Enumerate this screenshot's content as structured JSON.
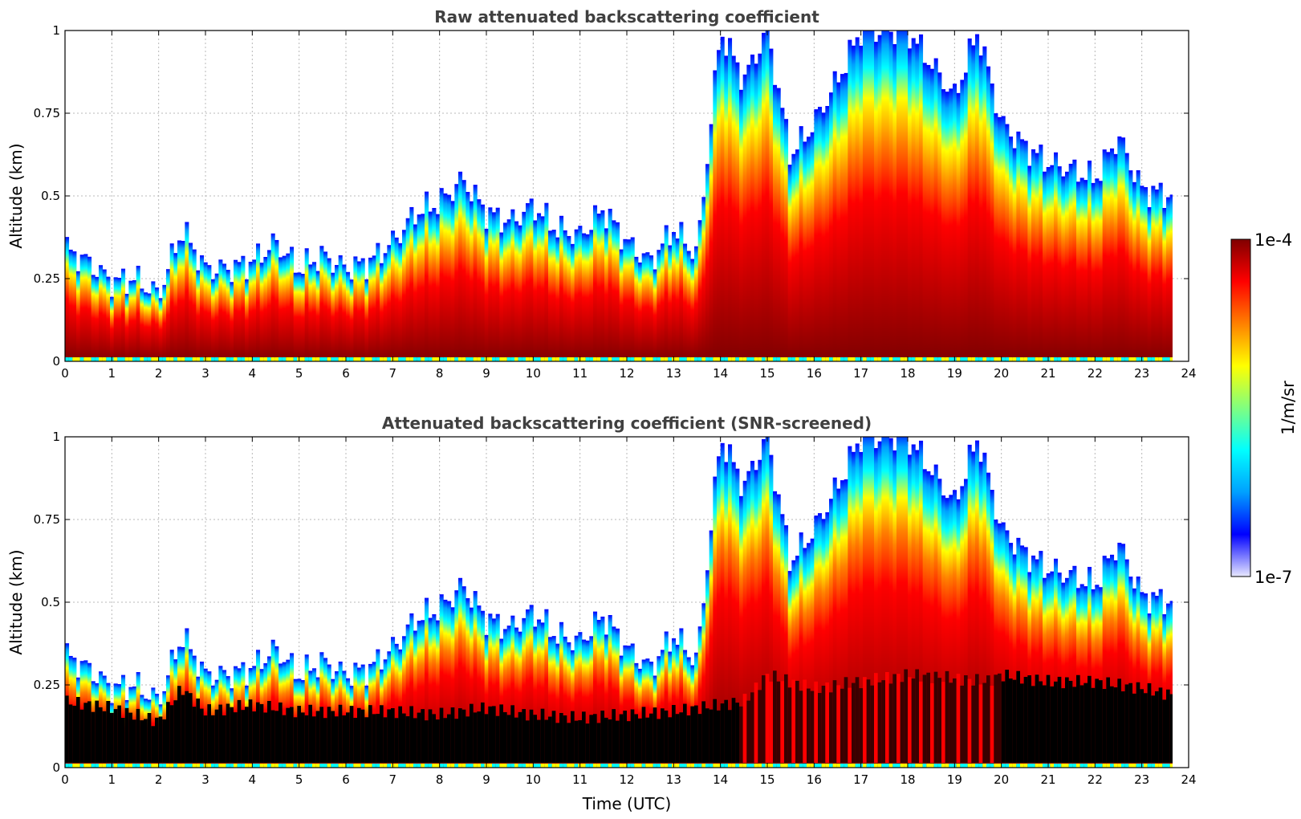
{
  "chart_data": [
    {
      "type": "heatmap",
      "title": "Raw attenuated backscattering coefficient",
      "xlabel": "",
      "ylabel": "Altitude (km)",
      "xlim": [
        0,
        24
      ],
      "ylim": [
        0,
        1
      ],
      "x_ticks": [
        0,
        1,
        2,
        3,
        4,
        5,
        6,
        7,
        8,
        9,
        10,
        11,
        12,
        13,
        14,
        15,
        16,
        17,
        18,
        19,
        20,
        21,
        22,
        23,
        24
      ],
      "y_ticks": [
        {
          "value": 0,
          "label": "0"
        },
        {
          "value": 0.25,
          "label": "0.25"
        },
        {
          "value": 0.5,
          "label": "0.5"
        },
        {
          "value": 0.75,
          "label": "0.75"
        },
        {
          "value": 1,
          "label": "1"
        }
      ],
      "grid": true,
      "data_end_time": 23.65,
      "layer_top_km": {
        "time": [
          0,
          0.5,
          1,
          1.5,
          2,
          2.5,
          3,
          3.5,
          4,
          4.5,
          5,
          5.5,
          6,
          6.5,
          7,
          7.5,
          8,
          8.5,
          9,
          9.5,
          10,
          10.5,
          11,
          11.5,
          12,
          12.5,
          13,
          13.5,
          14,
          14.5,
          15,
          15.5,
          16,
          16.5,
          17,
          17.5,
          18,
          18.5,
          19,
          19.5,
          20,
          20.5,
          21,
          21.5,
          22,
          22.5,
          23,
          23.65
        ],
        "altitude": [
          0.34,
          0.3,
          0.24,
          0.25,
          0.2,
          0.4,
          0.28,
          0.28,
          0.3,
          0.36,
          0.28,
          0.32,
          0.28,
          0.3,
          0.36,
          0.45,
          0.48,
          0.55,
          0.45,
          0.42,
          0.47,
          0.4,
          0.38,
          0.46,
          0.36,
          0.3,
          0.4,
          0.32,
          1.0,
          0.85,
          1.0,
          0.62,
          0.72,
          0.85,
          1.0,
          1.0,
          1.0,
          0.9,
          0.8,
          1.0,
          0.72,
          0.65,
          0.6,
          0.58,
          0.55,
          0.68,
          0.52,
          0.5
        ]
      },
      "core_top_km": {
        "time": [
          0,
          1,
          2,
          2.5,
          3,
          4,
          5,
          6,
          7,
          8,
          9,
          10,
          11,
          12,
          13,
          14,
          14.5,
          15,
          16,
          17,
          18,
          19,
          19.7,
          20,
          21,
          22,
          23,
          23.65
        ],
        "altitude": [
          0.2,
          0.18,
          0.14,
          0.24,
          0.17,
          0.19,
          0.17,
          0.17,
          0.17,
          0.16,
          0.18,
          0.16,
          0.15,
          0.16,
          0.17,
          0.19,
          0.2,
          0.28,
          0.24,
          0.26,
          0.28,
          0.27,
          0.26,
          0.28,
          0.26,
          0.26,
          0.24,
          0.22
        ]
      }
    },
    {
      "type": "heatmap",
      "title": "Attenuated backscattering coefficient (SNR-screened)",
      "xlabel": "Time (UTC)",
      "ylabel": "Altitude (km)",
      "xlim": [
        0,
        24
      ],
      "ylim": [
        0,
        1
      ],
      "x_ticks": [
        0,
        1,
        2,
        3,
        4,
        5,
        6,
        7,
        8,
        9,
        10,
        11,
        12,
        13,
        14,
        15,
        16,
        17,
        18,
        19,
        20,
        21,
        22,
        23,
        24
      ],
      "y_ticks": [
        {
          "value": 0,
          "label": "0"
        },
        {
          "value": 0.25,
          "label": "0.25"
        },
        {
          "value": 0.5,
          "label": "0.5"
        },
        {
          "value": 0.75,
          "label": "0.75"
        },
        {
          "value": 1,
          "label": "1"
        }
      ],
      "grid": true,
      "data_end_time": 23.65,
      "screened_color": "#000000"
    }
  ],
  "colorbar": {
    "label": "1/m/sr",
    "max_label": "1e-4",
    "min_label": "1e-7",
    "scale": "log",
    "range": [
      1e-07,
      0.0001
    ]
  },
  "colors": {
    "colormap": [
      "#e8e8ff",
      "#0000ff",
      "#00a0ff",
      "#00ffff",
      "#80ff80",
      "#ffff00",
      "#ff8000",
      "#ff0000",
      "#800000"
    ],
    "frame": "#000000",
    "grid": "#b8b8b8",
    "title": "#404040"
  }
}
